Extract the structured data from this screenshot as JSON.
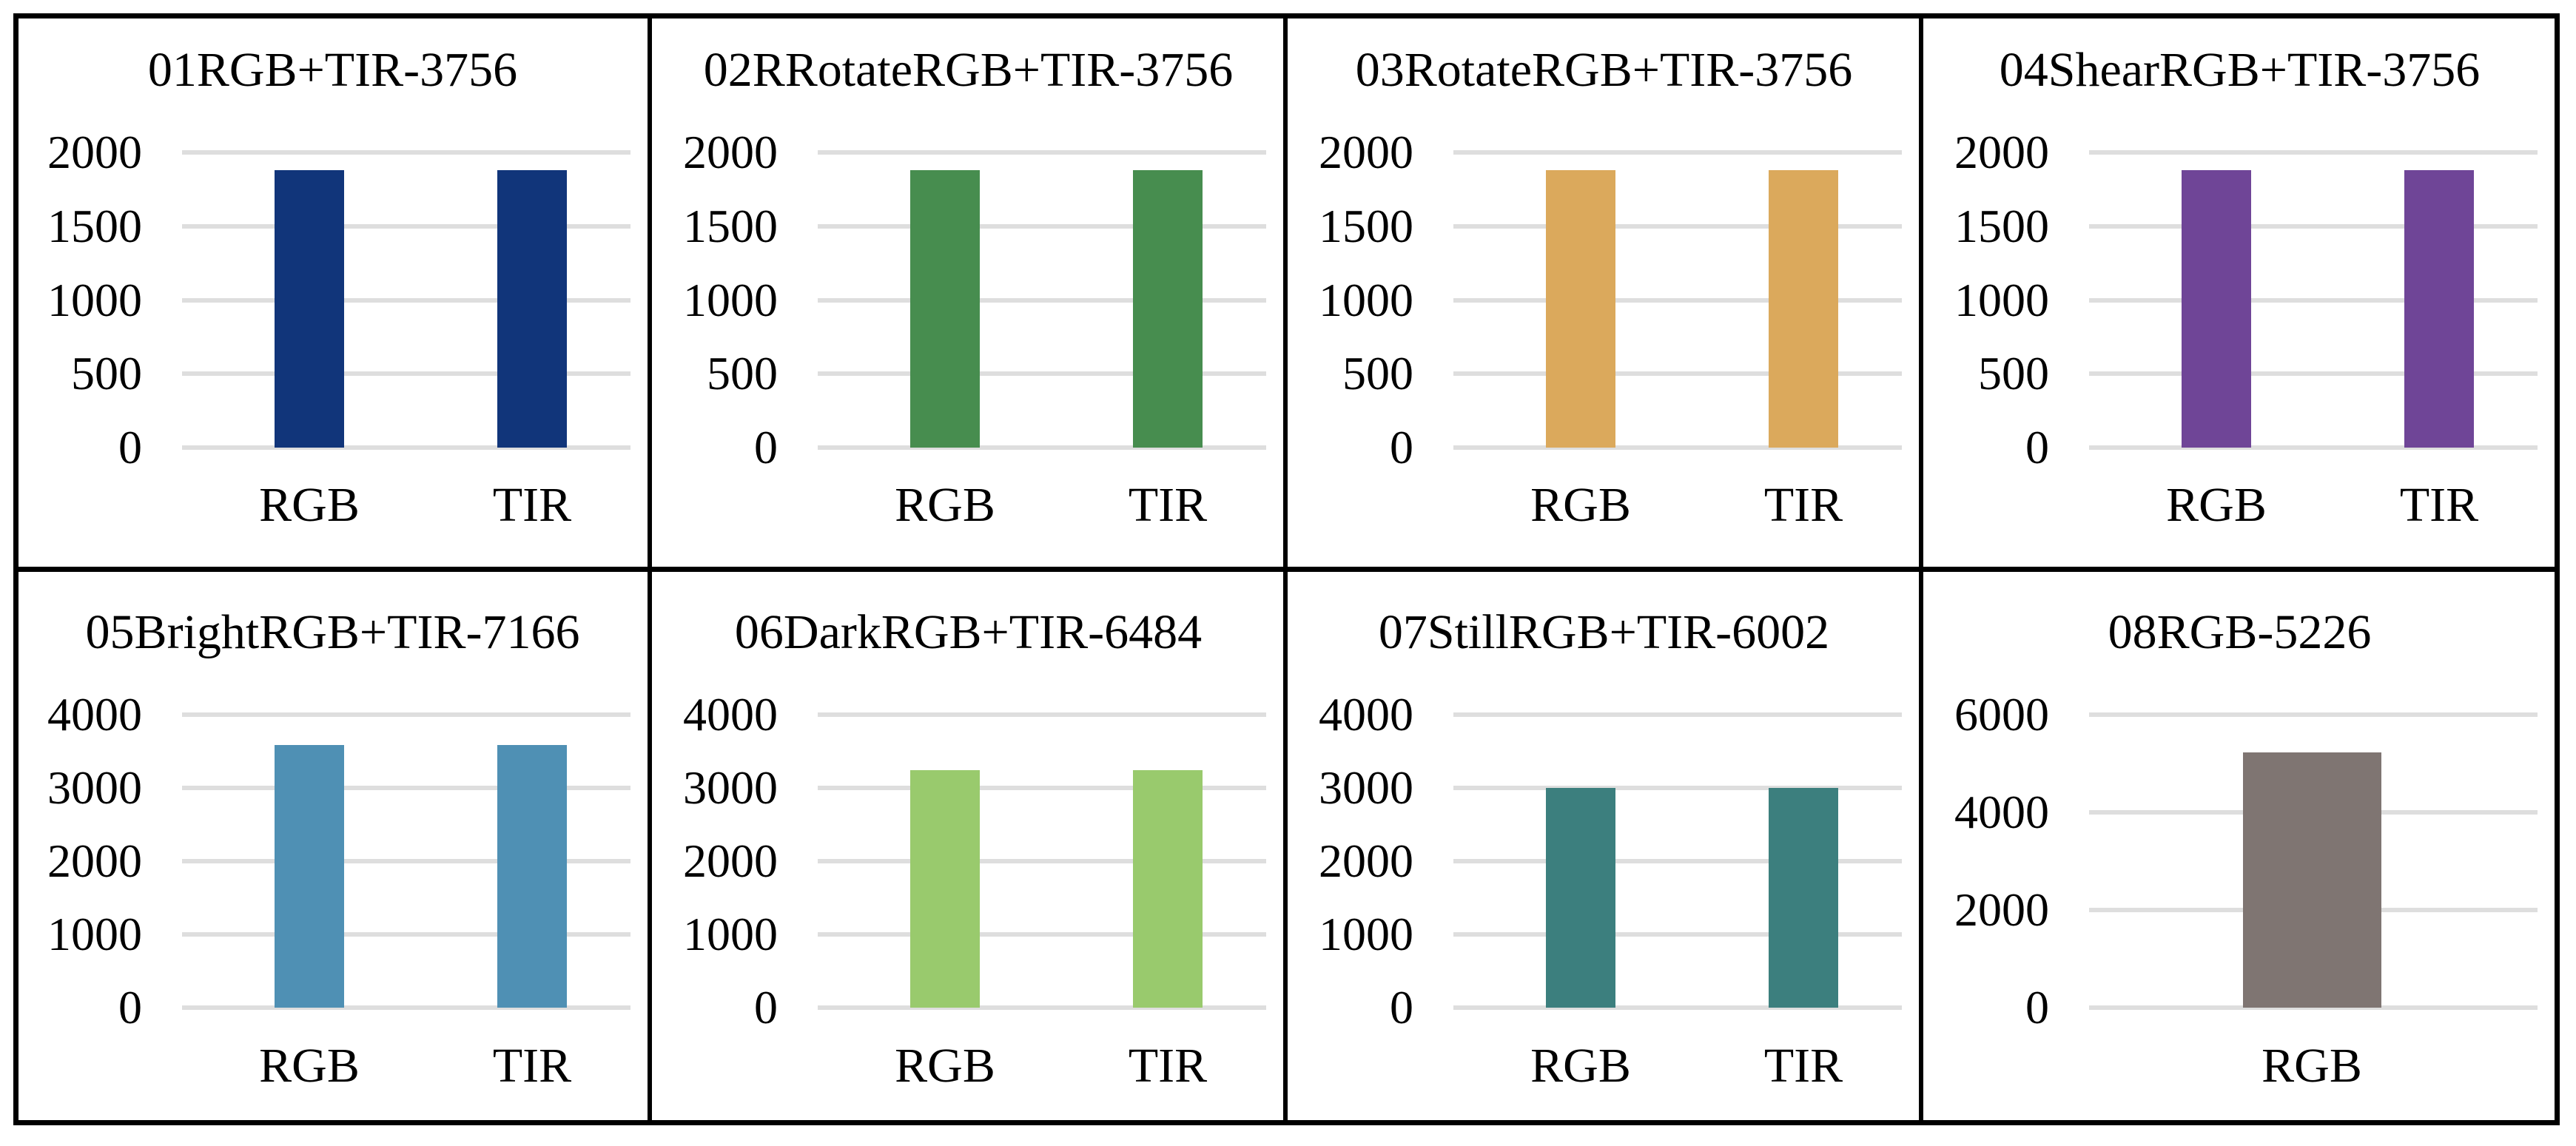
{
  "figure": {
    "panels": [
      {
        "title": "01RGB+TIR-3756",
        "color": "#11357A",
        "yticks": [
          "2000",
          "1500",
          "1000",
          "500",
          "0"
        ],
        "ymax": 2000,
        "categories": [
          "RGB",
          "TIR"
        ],
        "values": [
          1878,
          1878
        ]
      },
      {
        "title": "02RRotateRGB+TIR-3756",
        "color": "#478D4F",
        "yticks": [
          "2000",
          "1500",
          "1000",
          "500",
          "0"
        ],
        "ymax": 2000,
        "categories": [
          "RGB",
          "TIR"
        ],
        "values": [
          1878,
          1878
        ]
      },
      {
        "title": "03RotateRGB+TIR-3756",
        "color": "#DBA95C",
        "yticks": [
          "2000",
          "1500",
          "1000",
          "500",
          "0"
        ],
        "ymax": 2000,
        "categories": [
          "RGB",
          "TIR"
        ],
        "values": [
          1878,
          1878
        ]
      },
      {
        "title": "04ShearRGB+TIR-3756",
        "color": "#6F4597",
        "yticks": [
          "2000",
          "1500",
          "1000",
          "500",
          "0"
        ],
        "ymax": 2000,
        "categories": [
          "RGB",
          "TIR"
        ],
        "values": [
          1878,
          1878
        ]
      },
      {
        "title": "05BrightRGB+TIR-7166",
        "color": "#4F90B4",
        "yticks": [
          "4000",
          "3000",
          "2000",
          "1000",
          "0"
        ],
        "ymax": 4000,
        "categories": [
          "RGB",
          "TIR"
        ],
        "values": [
          3583,
          3583
        ]
      },
      {
        "title": "06DarkRGB+TIR-6484",
        "color": "#99CA6D",
        "yticks": [
          "4000",
          "3000",
          "2000",
          "1000",
          "0"
        ],
        "ymax": 4000,
        "categories": [
          "RGB",
          "TIR"
        ],
        "values": [
          3242,
          3242
        ]
      },
      {
        "title": "07StillRGB+TIR-6002",
        "color": "#3C7F7E",
        "yticks": [
          "4000",
          "3000",
          "2000",
          "1000",
          "0"
        ],
        "ymax": 4000,
        "categories": [
          "RGB",
          "TIR"
        ],
        "values": [
          3001,
          3001
        ]
      },
      {
        "title": "08RGB-5226",
        "color": "#7F7572",
        "yticks": [
          "6000",
          "4000",
          "2000",
          "0"
        ],
        "ymax": 6000,
        "categories": [
          "RGB"
        ],
        "values": [
          5226
        ]
      }
    ],
    "grid_color": "#DEDEDE"
  },
  "chart_data": [
    {
      "type": "bar",
      "title": "01RGB+TIR-3756",
      "categories": [
        "RGB",
        "TIR"
      ],
      "values": [
        1878,
        1878
      ],
      "xlabel": "",
      "ylabel": "",
      "ylim": [
        0,
        2000
      ],
      "yticks": [
        0,
        500,
        1000,
        1500,
        2000
      ],
      "grid": true,
      "color": "#11357A"
    },
    {
      "type": "bar",
      "title": "02RRotateRGB+TIR-3756",
      "categories": [
        "RGB",
        "TIR"
      ],
      "values": [
        1878,
        1878
      ],
      "xlabel": "",
      "ylabel": "",
      "ylim": [
        0,
        2000
      ],
      "yticks": [
        0,
        500,
        1000,
        1500,
        2000
      ],
      "grid": true,
      "color": "#478D4F"
    },
    {
      "type": "bar",
      "title": "03RotateRGB+TIR-3756",
      "categories": [
        "RGB",
        "TIR"
      ],
      "values": [
        1878,
        1878
      ],
      "xlabel": "",
      "ylabel": "",
      "ylim": [
        0,
        2000
      ],
      "yticks": [
        0,
        500,
        1000,
        1500,
        2000
      ],
      "grid": true,
      "color": "#DBA95C"
    },
    {
      "type": "bar",
      "title": "04ShearRGB+TIR-3756",
      "categories": [
        "RGB",
        "TIR"
      ],
      "values": [
        1878,
        1878
      ],
      "xlabel": "",
      "ylabel": "",
      "ylim": [
        0,
        2000
      ],
      "yticks": [
        0,
        500,
        1000,
        1500,
        2000
      ],
      "grid": true,
      "color": "#6F4597"
    },
    {
      "type": "bar",
      "title": "05BrightRGB+TIR-7166",
      "categories": [
        "RGB",
        "TIR"
      ],
      "values": [
        3583,
        3583
      ],
      "xlabel": "",
      "ylabel": "",
      "ylim": [
        0,
        4000
      ],
      "yticks": [
        0,
        1000,
        2000,
        3000,
        4000
      ],
      "grid": true,
      "color": "#4F90B4"
    },
    {
      "type": "bar",
      "title": "06DarkRGB+TIR-6484",
      "categories": [
        "RGB",
        "TIR"
      ],
      "values": [
        3242,
        3242
      ],
      "xlabel": "",
      "ylabel": "",
      "ylim": [
        0,
        4000
      ],
      "yticks": [
        0,
        1000,
        2000,
        3000,
        4000
      ],
      "grid": true,
      "color": "#99CA6D"
    },
    {
      "type": "bar",
      "title": "07StillRGB+TIR-6002",
      "categories": [
        "RGB",
        "TIR"
      ],
      "values": [
        3001,
        3001
      ],
      "xlabel": "",
      "ylabel": "",
      "ylim": [
        0,
        4000
      ],
      "yticks": [
        0,
        1000,
        2000,
        3000,
        4000
      ],
      "grid": true,
      "color": "#3C7F7E"
    },
    {
      "type": "bar",
      "title": "08RGB-5226",
      "categories": [
        "RGB"
      ],
      "values": [
        5226
      ],
      "xlabel": "",
      "ylabel": "",
      "ylim": [
        0,
        6000
      ],
      "yticks": [
        0,
        2000,
        4000,
        6000
      ],
      "grid": true,
      "color": "#7F7572"
    }
  ]
}
